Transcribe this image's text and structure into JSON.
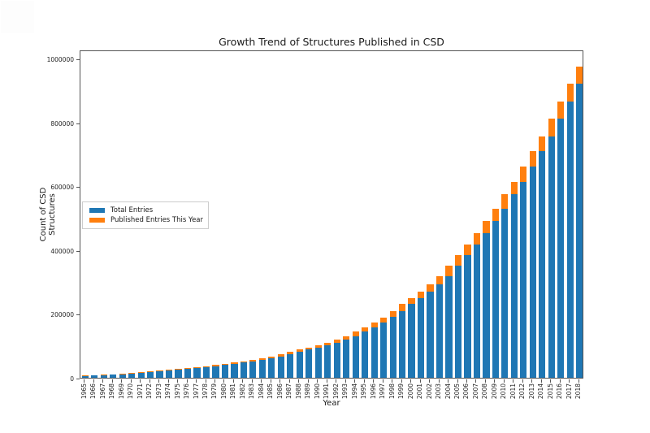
{
  "chart_data": {
    "type": "bar",
    "stacked": true,
    "title": "Growth Trend of Structures Published in CSD",
    "xlabel": "Year",
    "ylabel": "Count of CSD Structures",
    "ylim": [
      0,
      1030000
    ],
    "grid": false,
    "legend_position": "center-left",
    "y_tick_labels": [
      "0",
      "200000",
      "400000",
      "600000",
      "800000",
      "1000000"
    ],
    "y_tick_values": [
      0,
      200000,
      400000,
      600000,
      800000,
      1000000
    ],
    "categories": [
      "1965",
      "1966",
      "1967",
      "1968",
      "1969",
      "1970",
      "1971",
      "1972",
      "1973",
      "1974",
      "1975",
      "1976",
      "1977",
      "1978",
      "1979",
      "1980",
      "1981",
      "1982",
      "1983",
      "1984",
      "1985",
      "1986",
      "1987",
      "1988",
      "1989",
      "1990",
      "1991",
      "1992",
      "1993",
      "1994",
      "1995",
      "1996",
      "1997",
      "1998",
      "1999",
      "2000",
      "2001",
      "2002",
      "2003",
      "2004",
      "2005",
      "2006",
      "2007",
      "2008",
      "2009",
      "2010",
      "2011",
      "2012",
      "2013",
      "2014",
      "2015",
      "2016",
      "2017",
      "2018"
    ],
    "series": [
      {
        "name": "Total Entries",
        "color": "#1f77b4",
        "values": [
          4900,
          6500,
          8000,
          9600,
          11300,
          13200,
          15200,
          17400,
          19800,
          22400,
          25000,
          27600,
          30400,
          33400,
          36600,
          40000,
          43700,
          47600,
          51800,
          56300,
          61500,
          67500,
          74200,
          81700,
          89000,
          95000,
          101500,
          110000,
          119000,
          131000,
          145000,
          159000,
          173000,
          190000,
          210000,
          232000,
          251000,
          271000,
          293000,
          320000,
          352000,
          384000,
          418000,
          455000,
          492000,
          531000,
          576000,
          614000,
          663000,
          711000,
          756000,
          813000,
          868000,
          922000
        ]
      },
      {
        "name": "Published Entries This Year",
        "color": "#ff7f0e",
        "values": [
          1600,
          1500,
          1600,
          1700,
          1900,
          2000,
          2200,
          2400,
          2600,
          2600,
          2600,
          2800,
          3000,
          3200,
          3400,
          3700,
          3900,
          4200,
          4500,
          5200,
          6000,
          6700,
          7500,
          7300,
          6000,
          6500,
          8500,
          9000,
          12000,
          14000,
          14000,
          14000,
          17000,
          20000,
          22000,
          19000,
          20000,
          22000,
          27000,
          32000,
          32000,
          34000,
          37000,
          37000,
          39000,
          45000,
          38000,
          49000,
          48000,
          45000,
          57000,
          55000,
          54000,
          55000
        ]
      }
    ]
  },
  "colors": {
    "blue": "#1f77b4",
    "orange": "#ff7f0e",
    "spine": "#555555"
  }
}
